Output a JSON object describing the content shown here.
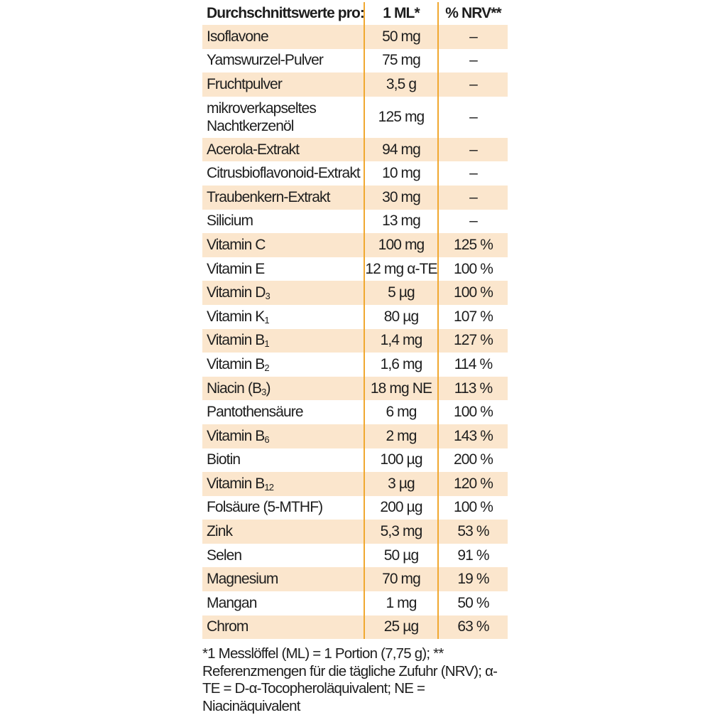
{
  "header": {
    "col1": "Durchschnittswerte pro:",
    "col2": "1 ML*",
    "col3": "% NRV**"
  },
  "rows": [
    {
      "name": "Isoflavone",
      "sub": "",
      "suffix": "",
      "amount": "50 mg",
      "nrv": "–"
    },
    {
      "name": "Yamswurzel-Pulver",
      "sub": "",
      "suffix": "",
      "amount": "75 mg",
      "nrv": "–"
    },
    {
      "name": "Fruchtpulver",
      "sub": "",
      "suffix": "",
      "amount": "3,5 g",
      "nrv": "–"
    },
    {
      "name": "mikroverkapseltes Nachtkerzenöl",
      "sub": "",
      "suffix": "",
      "amount": "125 mg",
      "nrv": "–"
    },
    {
      "name": "Acerola-Extrakt",
      "sub": "",
      "suffix": "",
      "amount": "94 mg",
      "nrv": "–"
    },
    {
      "name": "Citrusbioflavonoid-Extrakt",
      "sub": "",
      "suffix": "",
      "amount": "10 mg",
      "nrv": "–"
    },
    {
      "name": "Traubenkern-Extrakt",
      "sub": "",
      "suffix": "",
      "amount": "30 mg",
      "nrv": "–"
    },
    {
      "name": "Silicium",
      "sub": "",
      "suffix": "",
      "amount": "13 mg",
      "nrv": "–"
    },
    {
      "name": "Vitamin C",
      "sub": "",
      "suffix": "",
      "amount": "100 mg",
      "nrv": "125 %"
    },
    {
      "name": "Vitamin E",
      "sub": "",
      "suffix": "",
      "amount": "12 mg α-TE",
      "nrv": "100 %"
    },
    {
      "name": "Vitamin D",
      "sub": "3",
      "suffix": "",
      "amount": "5 µg",
      "nrv": "100 %"
    },
    {
      "name": "Vitamin K",
      "sub": "1",
      "suffix": "",
      "amount": "80 µg",
      "nrv": "107 %"
    },
    {
      "name": "Vitamin B",
      "sub": "1",
      "suffix": "",
      "amount": "1,4 mg",
      "nrv": "127 %"
    },
    {
      "name": "Vitamin B",
      "sub": "2",
      "suffix": "",
      "amount": "1,6 mg",
      "nrv": "114 %"
    },
    {
      "name": "Niacin (B",
      "sub": "3",
      "suffix": ")",
      "amount": "18 mg NE",
      "nrv": "113 %"
    },
    {
      "name": "Pantothensäure",
      "sub": "",
      "suffix": "",
      "amount": "6 mg",
      "nrv": "100 %"
    },
    {
      "name": "Vitamin B",
      "sub": "6",
      "suffix": "",
      "amount": "2 mg",
      "nrv": "143 %"
    },
    {
      "name": "Biotin",
      "sub": "",
      "suffix": "",
      "amount": "100 µg",
      "nrv": "200 %"
    },
    {
      "name": "Vitamin B",
      "sub": "12",
      "suffix": "",
      "amount": "3 µg",
      "nrv": "120 %"
    },
    {
      "name": "Folsäure (5-MTHF)",
      "sub": "",
      "suffix": "",
      "amount": "200 µg",
      "nrv": "100 %"
    },
    {
      "name": "Zink",
      "sub": "",
      "suffix": "",
      "amount": "5,3 mg",
      "nrv": "53 %"
    },
    {
      "name": "Selen",
      "sub": "",
      "suffix": "",
      "amount": "50 µg",
      "nrv": "91 %"
    },
    {
      "name": "Magnesium",
      "sub": "",
      "suffix": "",
      "amount": "70 mg",
      "nrv": "19 %"
    },
    {
      "name": "Mangan",
      "sub": "",
      "suffix": "",
      "amount": "1 mg",
      "nrv": "50 %"
    },
    {
      "name": "Chrom",
      "sub": "",
      "suffix": "",
      "amount": "25 µg",
      "nrv": "63 %"
    }
  ],
  "footnote": "*1 Messlöffel (ML) = 1 Portion (7,75 g); ** Referenzmengen für die tägliche Zufuhr (NRV); α-TE = D-α-Tocopheroläquivalent; NE = Niacinäquivalent",
  "colors": {
    "shade": "#fbe6cd",
    "divider": "#f0a830",
    "text": "#1e1e1e"
  }
}
